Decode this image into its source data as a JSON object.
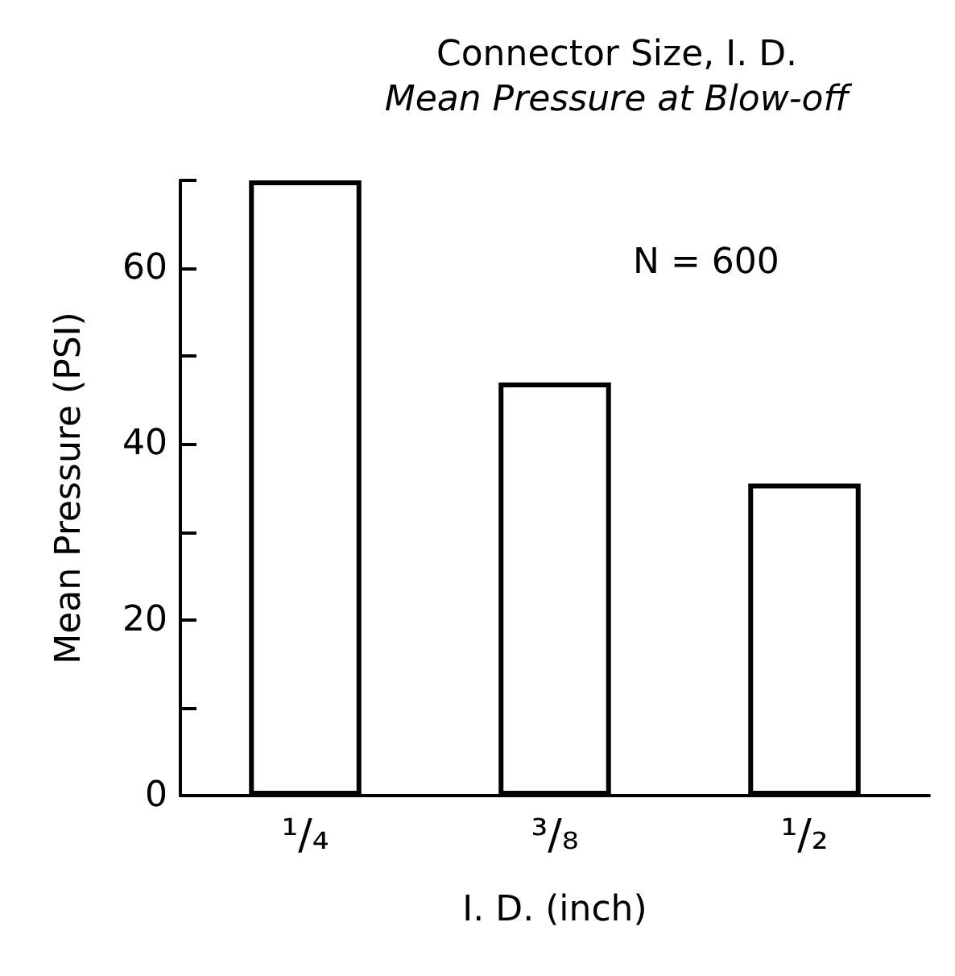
{
  "chart_data": {
    "type": "bar",
    "title": "Connector Size, I. D.",
    "subtitle": "Mean Pressure at Blow-off",
    "xlabel": "I. D. (inch)",
    "ylabel": "Mean Pressure (PSI)",
    "annotations": [
      "N = 600"
    ],
    "categories": [
      "¹/₄",
      "³/₈",
      "¹/₂"
    ],
    "values": [
      70,
      47,
      35.5
    ],
    "color": "#ffffff",
    "ylim": [
      0,
      70
    ],
    "yticks": [
      0,
      {
        "value": 10,
        "label": null
      },
      20,
      {
        "value": 30,
        "label": null
      },
      40,
      {
        "value": 50,
        "label": null
      },
      60,
      {
        "value": 70,
        "label": null
      }
    ],
    "grid": false
  }
}
